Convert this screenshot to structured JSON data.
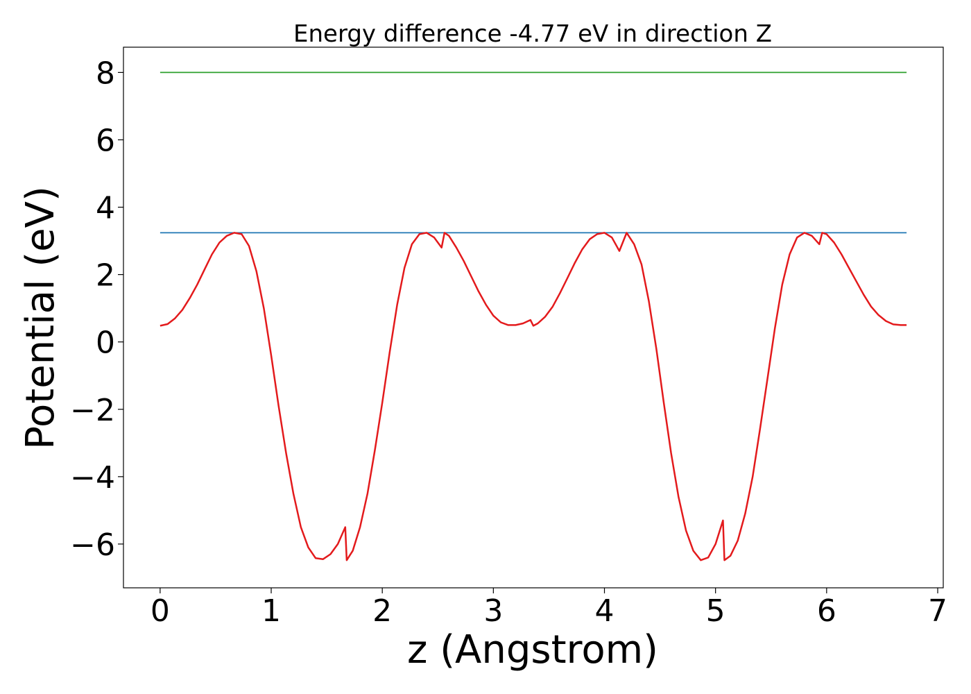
{
  "chart_data": {
    "type": "line",
    "title": "Energy difference -4.77 eV in direction Z",
    "xlabel": "z (Angstrom)",
    "ylabel": "Potential (eV)",
    "xlim": [
      -0.33,
      7.05
    ],
    "ylim": [
      -7.3,
      8.75
    ],
    "xticks": [
      0,
      1,
      2,
      3,
      4,
      5,
      6,
      7
    ],
    "xtick_labels": [
      "0",
      "1",
      "2",
      "3",
      "4",
      "5",
      "6",
      "7"
    ],
    "yticks": [
      -6,
      -4,
      -2,
      0,
      2,
      4,
      6,
      8
    ],
    "ytick_labels": [
      "−6",
      "−4",
      "−2",
      "0",
      "2",
      "4",
      "6",
      "8"
    ],
    "grid": false,
    "series": [
      {
        "color": "#2ca02c",
        "x": [
          0,
          6.72
        ],
        "y": [
          8.0,
          8.0
        ]
      },
      {
        "color": "#1f77b4",
        "x": [
          0,
          6.72
        ],
        "y": [
          3.24,
          3.24
        ]
      },
      {
        "color": "#e31a1c",
        "x": [
          0,
          0.067,
          0.134,
          0.2,
          0.267,
          0.334,
          0.4,
          0.467,
          0.534,
          0.6,
          0.667,
          0.734,
          0.8,
          0.867,
          0.934,
          1.0,
          1.067,
          1.134,
          1.2,
          1.267,
          1.334,
          1.4,
          1.467,
          1.534,
          1.6,
          1.667,
          1.68,
          1.734,
          1.8,
          1.867,
          1.934,
          2.0,
          2.067,
          2.134,
          2.2,
          2.267,
          2.334,
          2.4,
          2.467,
          2.534,
          2.56,
          2.6,
          2.667,
          2.734,
          2.8,
          2.867,
          2.934,
          3.0,
          3.067,
          3.134,
          3.2,
          3.267,
          3.334,
          3.36,
          3.4,
          3.467,
          3.534,
          3.6,
          3.667,
          3.734,
          3.8,
          3.867,
          3.934,
          4.0,
          4.067,
          4.134,
          4.2,
          4.267,
          4.334,
          4.4,
          4.467,
          4.534,
          4.6,
          4.667,
          4.734,
          4.8,
          4.867,
          4.934,
          5.0,
          5.067,
          5.08,
          5.134,
          5.2,
          5.267,
          5.334,
          5.4,
          5.467,
          5.534,
          5.6,
          5.667,
          5.734,
          5.8,
          5.867,
          5.934,
          5.96,
          6.0,
          6.067,
          6.134,
          6.2,
          6.267,
          6.334,
          6.4,
          6.467,
          6.534,
          6.6,
          6.667,
          6.72
        ],
        "y": [
          0.48,
          0.53,
          0.7,
          0.95,
          1.3,
          1.7,
          2.15,
          2.6,
          2.95,
          3.15,
          3.24,
          3.2,
          2.85,
          2.1,
          1.0,
          -0.4,
          -1.9,
          -3.3,
          -4.5,
          -5.5,
          -6.1,
          -6.42,
          -6.45,
          -6.3,
          -6.0,
          -5.5,
          -6.48,
          -6.2,
          -5.5,
          -4.5,
          -3.2,
          -1.8,
          -0.3,
          1.1,
          2.2,
          2.9,
          3.2,
          3.24,
          3.1,
          2.8,
          3.24,
          3.15,
          2.8,
          2.4,
          1.95,
          1.5,
          1.1,
          0.78,
          0.58,
          0.5,
          0.5,
          0.55,
          0.65,
          0.48,
          0.55,
          0.75,
          1.05,
          1.45,
          1.9,
          2.35,
          2.75,
          3.05,
          3.2,
          3.24,
          3.1,
          2.7,
          3.24,
          2.9,
          2.3,
          1.2,
          -0.2,
          -1.8,
          -3.3,
          -4.6,
          -5.6,
          -6.2,
          -6.48,
          -6.4,
          -6.0,
          -5.3,
          -6.48,
          -6.35,
          -5.9,
          -5.1,
          -4.0,
          -2.6,
          -1.1,
          0.4,
          1.7,
          2.6,
          3.1,
          3.24,
          3.15,
          2.9,
          3.24,
          3.2,
          2.95,
          2.6,
          2.2,
          1.8,
          1.4,
          1.05,
          0.8,
          0.62,
          0.52,
          0.5,
          0.5
        ]
      }
    ]
  }
}
